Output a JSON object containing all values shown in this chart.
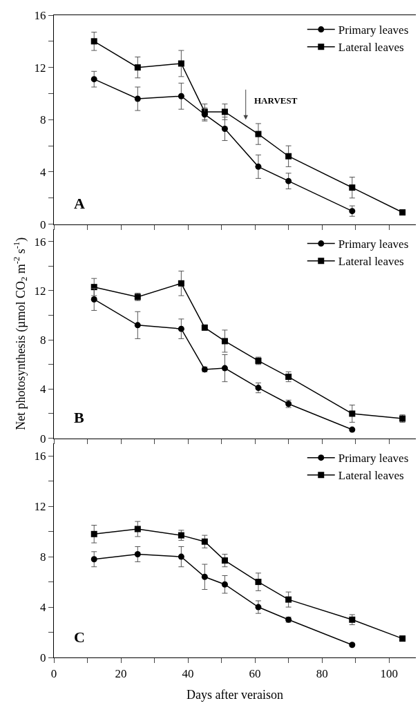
{
  "chart_data": [
    {
      "type": "line",
      "x": [
        12,
        25,
        38,
        45,
        51,
        61,
        70,
        89,
        104
      ],
      "xlim": [
        0,
        108
      ],
      "xticks": [
        0,
        {
          "value": 10,
          "label": null
        },
        20,
        {
          "value": 30,
          "label": null
        },
        40,
        {
          "value": 50,
          "label": null
        },
        60,
        {
          "value": 70,
          "label": null
        },
        80,
        {
          "value": 90,
          "label": null
        },
        100
      ],
      "ylim": [
        0,
        16
      ],
      "yticks": [
        0,
        {
          "value": 2,
          "label": null
        },
        4,
        {
          "value": 6,
          "label": null
        },
        8,
        {
          "value": 10,
          "label": null
        },
        12,
        {
          "value": 14,
          "label": null
        },
        16
      ],
      "tick_labels": "y",
      "legend": "top right",
      "grid": false,
      "series": [
        {
          "name": "Primary leaves",
          "color": "#000000",
          "marker": "circle",
          "values": [
            11.1,
            9.6,
            9.8,
            8.4,
            7.3,
            4.4,
            3.3,
            1.0,
            null
          ],
          "errors": [
            0.6,
            0.9,
            1.0,
            0.5,
            0.9,
            0.9,
            0.6,
            0.4,
            null
          ]
        },
        {
          "name": "Lateral leaves",
          "color": "#000000",
          "marker": "square",
          "values": [
            14.0,
            12.0,
            12.3,
            8.6,
            8.6,
            6.9,
            5.2,
            2.8,
            0.9
          ],
          "errors": [
            0.7,
            0.8,
            1.0,
            0.6,
            0.6,
            0.8,
            0.8,
            0.8,
            null
          ]
        }
      ],
      "annotations": [
        "A",
        "HARVEST"
      ]
    },
    {
      "type": "line",
      "x": [
        12,
        25,
        38,
        45,
        51,
        61,
        70,
        89,
        104
      ],
      "xlim": [
        0,
        108
      ],
      "xticks": [
        0,
        {
          "value": 10,
          "label": null
        },
        20,
        {
          "value": 30,
          "label": null
        },
        40,
        {
          "value": 50,
          "label": null
        },
        60,
        {
          "value": 70,
          "label": null
        },
        80,
        {
          "value": 90,
          "label": null
        },
        100
      ],
      "ylim": [
        0,
        17
      ],
      "yticks": [
        0,
        {
          "value": 2,
          "label": null
        },
        4,
        {
          "value": 6,
          "label": null
        },
        8,
        {
          "value": 10,
          "label": null
        },
        12,
        {
          "value": 14,
          "label": null
        },
        16
      ],
      "tick_labels": "y",
      "legend": "top right",
      "grid": false,
      "ylabel": "Net photosynthesis (µmol CO$_{2}$ m$^{-2}$ s$^{-1}$)",
      "series": [
        {
          "name": "Primary leaves",
          "color": "#000000",
          "marker": "circle",
          "values": [
            11.3,
            9.2,
            8.9,
            5.6,
            5.7,
            4.1,
            2.8,
            0.7,
            null
          ],
          "errors": [
            0.9,
            1.1,
            0.8,
            0.2,
            1.1,
            0.4,
            0.3,
            0.1,
            null
          ]
        },
        {
          "name": "Lateral leaves",
          "color": "#000000",
          "marker": "square",
          "values": [
            12.3,
            11.5,
            12.6,
            9.0,
            7.9,
            6.3,
            5.0,
            2.0,
            1.6
          ],
          "errors": [
            0.7,
            0.3,
            1.0,
            0.2,
            0.9,
            0.3,
            0.4,
            0.7,
            0.3
          ]
        }
      ],
      "annotations": [
        "B"
      ]
    },
    {
      "type": "line",
      "x": [
        12,
        25,
        38,
        45,
        51,
        61,
        70,
        89,
        104
      ],
      "xlim": [
        0,
        108
      ],
      "xticks": [
        0,
        {
          "value": 10,
          "label": null
        },
        20,
        {
          "value": 30,
          "label": null
        },
        40,
        {
          "value": 50,
          "label": null
        },
        60,
        {
          "value": 70,
          "label": null
        },
        80,
        {
          "value": 90,
          "label": null
        },
        100
      ],
      "ylim": [
        0,
        17
      ],
      "yticks": [
        0,
        {
          "value": 2,
          "label": null
        },
        4,
        {
          "value": 6,
          "label": null
        },
        8,
        {
          "value": 10,
          "label": null
        },
        12,
        {
          "value": 14,
          "label": null
        },
        16
      ],
      "legend": "top right",
      "grid": false,
      "xlabel": "Days after veraison",
      "series": [
        {
          "name": "Primary leaves",
          "color": "#000000",
          "marker": "circle",
          "values": [
            7.8,
            8.2,
            8.0,
            6.4,
            5.8,
            4.0,
            3.0,
            1.0,
            null
          ],
          "errors": [
            0.6,
            0.6,
            0.8,
            1.0,
            0.7,
            0.5,
            0.2,
            0.1,
            null
          ]
        },
        {
          "name": "Lateral leaves",
          "color": "#000000",
          "marker": "square",
          "values": [
            9.8,
            10.2,
            9.7,
            9.2,
            7.7,
            6.0,
            4.6,
            3.0,
            1.5
          ],
          "errors": [
            0.7,
            0.6,
            0.4,
            0.5,
            0.5,
            0.7,
            0.6,
            0.4,
            0.2
          ]
        }
      ],
      "annotations": [
        "C"
      ]
    }
  ]
}
